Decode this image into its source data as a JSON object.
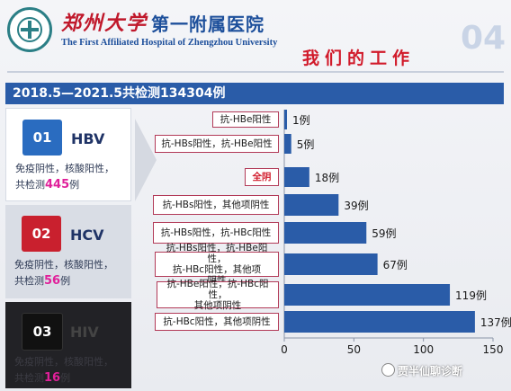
{
  "header": {
    "university_cn": "郑州大学",
    "hospital_cn": "第一附属医院",
    "hospital_en": "The First Affiliated Hospital of Zhengzhou University",
    "slogan": "我们的工作",
    "slide_number": "04"
  },
  "banner": "2018.5—2021.5共检测134304例",
  "panels": {
    "hbv": {
      "index": "01",
      "name": "HBV",
      "desc": "免疫阴性，核酸阳性，",
      "count_prefix": "共检测",
      "count": "445",
      "count_suffix": "例"
    },
    "hcv": {
      "index": "02",
      "name": "HCV",
      "desc": "免疫阴性，核酸阳性，",
      "count_prefix": "共检测",
      "count": "56",
      "count_suffix": "例"
    },
    "hiv": {
      "index": "03",
      "name": "HIV",
      "desc": "免疫阴性，核酸阳性，",
      "count_prefix": "共检测",
      "count": "16",
      "count_suffix": "例"
    }
  },
  "watermark": "贾半仙聊诊断",
  "chart_data": {
    "type": "bar",
    "orientation": "horizontal",
    "categories": [
      "抗-HBe阳性",
      "抗-HBs阳性，抗-HBe阳性",
      "全阴",
      "抗-HBs阳性，其他项阴性",
      "抗-HBs阳性，抗-HBc阳性",
      "抗-HBs阳性，抗-HBe阳性，\n抗-HBc阳性，其他项\n阴性",
      "抗-HBe阳性，抗-HBc阳性，\n其他项阴性",
      "抗-HBc阳性，其他项阴性"
    ],
    "values": [
      1,
      5,
      18,
      39,
      59,
      67,
      119,
      137
    ],
    "value_labels": [
      "1例",
      "5例",
      "18例",
      "39例",
      "59例",
      "67例",
      "119例",
      "137例"
    ],
    "highlight_index": 2,
    "xlim": [
      0,
      150
    ],
    "xticks": [
      "0",
      "50",
      "100",
      "150"
    ],
    "bar_color": "#2a5ca8",
    "grid": false
  }
}
